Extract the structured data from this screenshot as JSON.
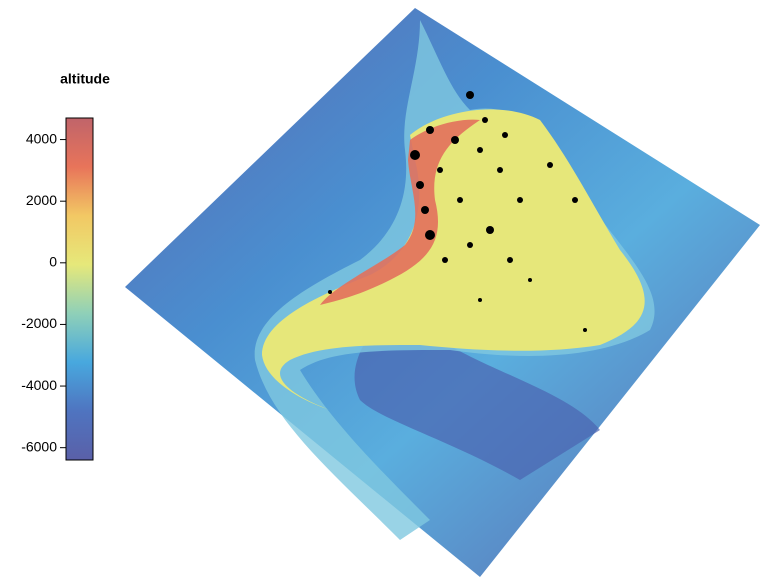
{
  "chart_data": {
    "type": "colorbar",
    "title": "altitude",
    "zlim": [
      -6400,
      4700
    ],
    "zticks": [
      4000,
      2000,
      0,
      -2000,
      -4000,
      -6000
    ],
    "colors": [
      "#5a60a8",
      "#4f74c0",
      "#48a8de",
      "#8fd0b8",
      "#e6e87a",
      "#f2c864",
      "#e8745a",
      "#c0646a"
    ]
  }
}
